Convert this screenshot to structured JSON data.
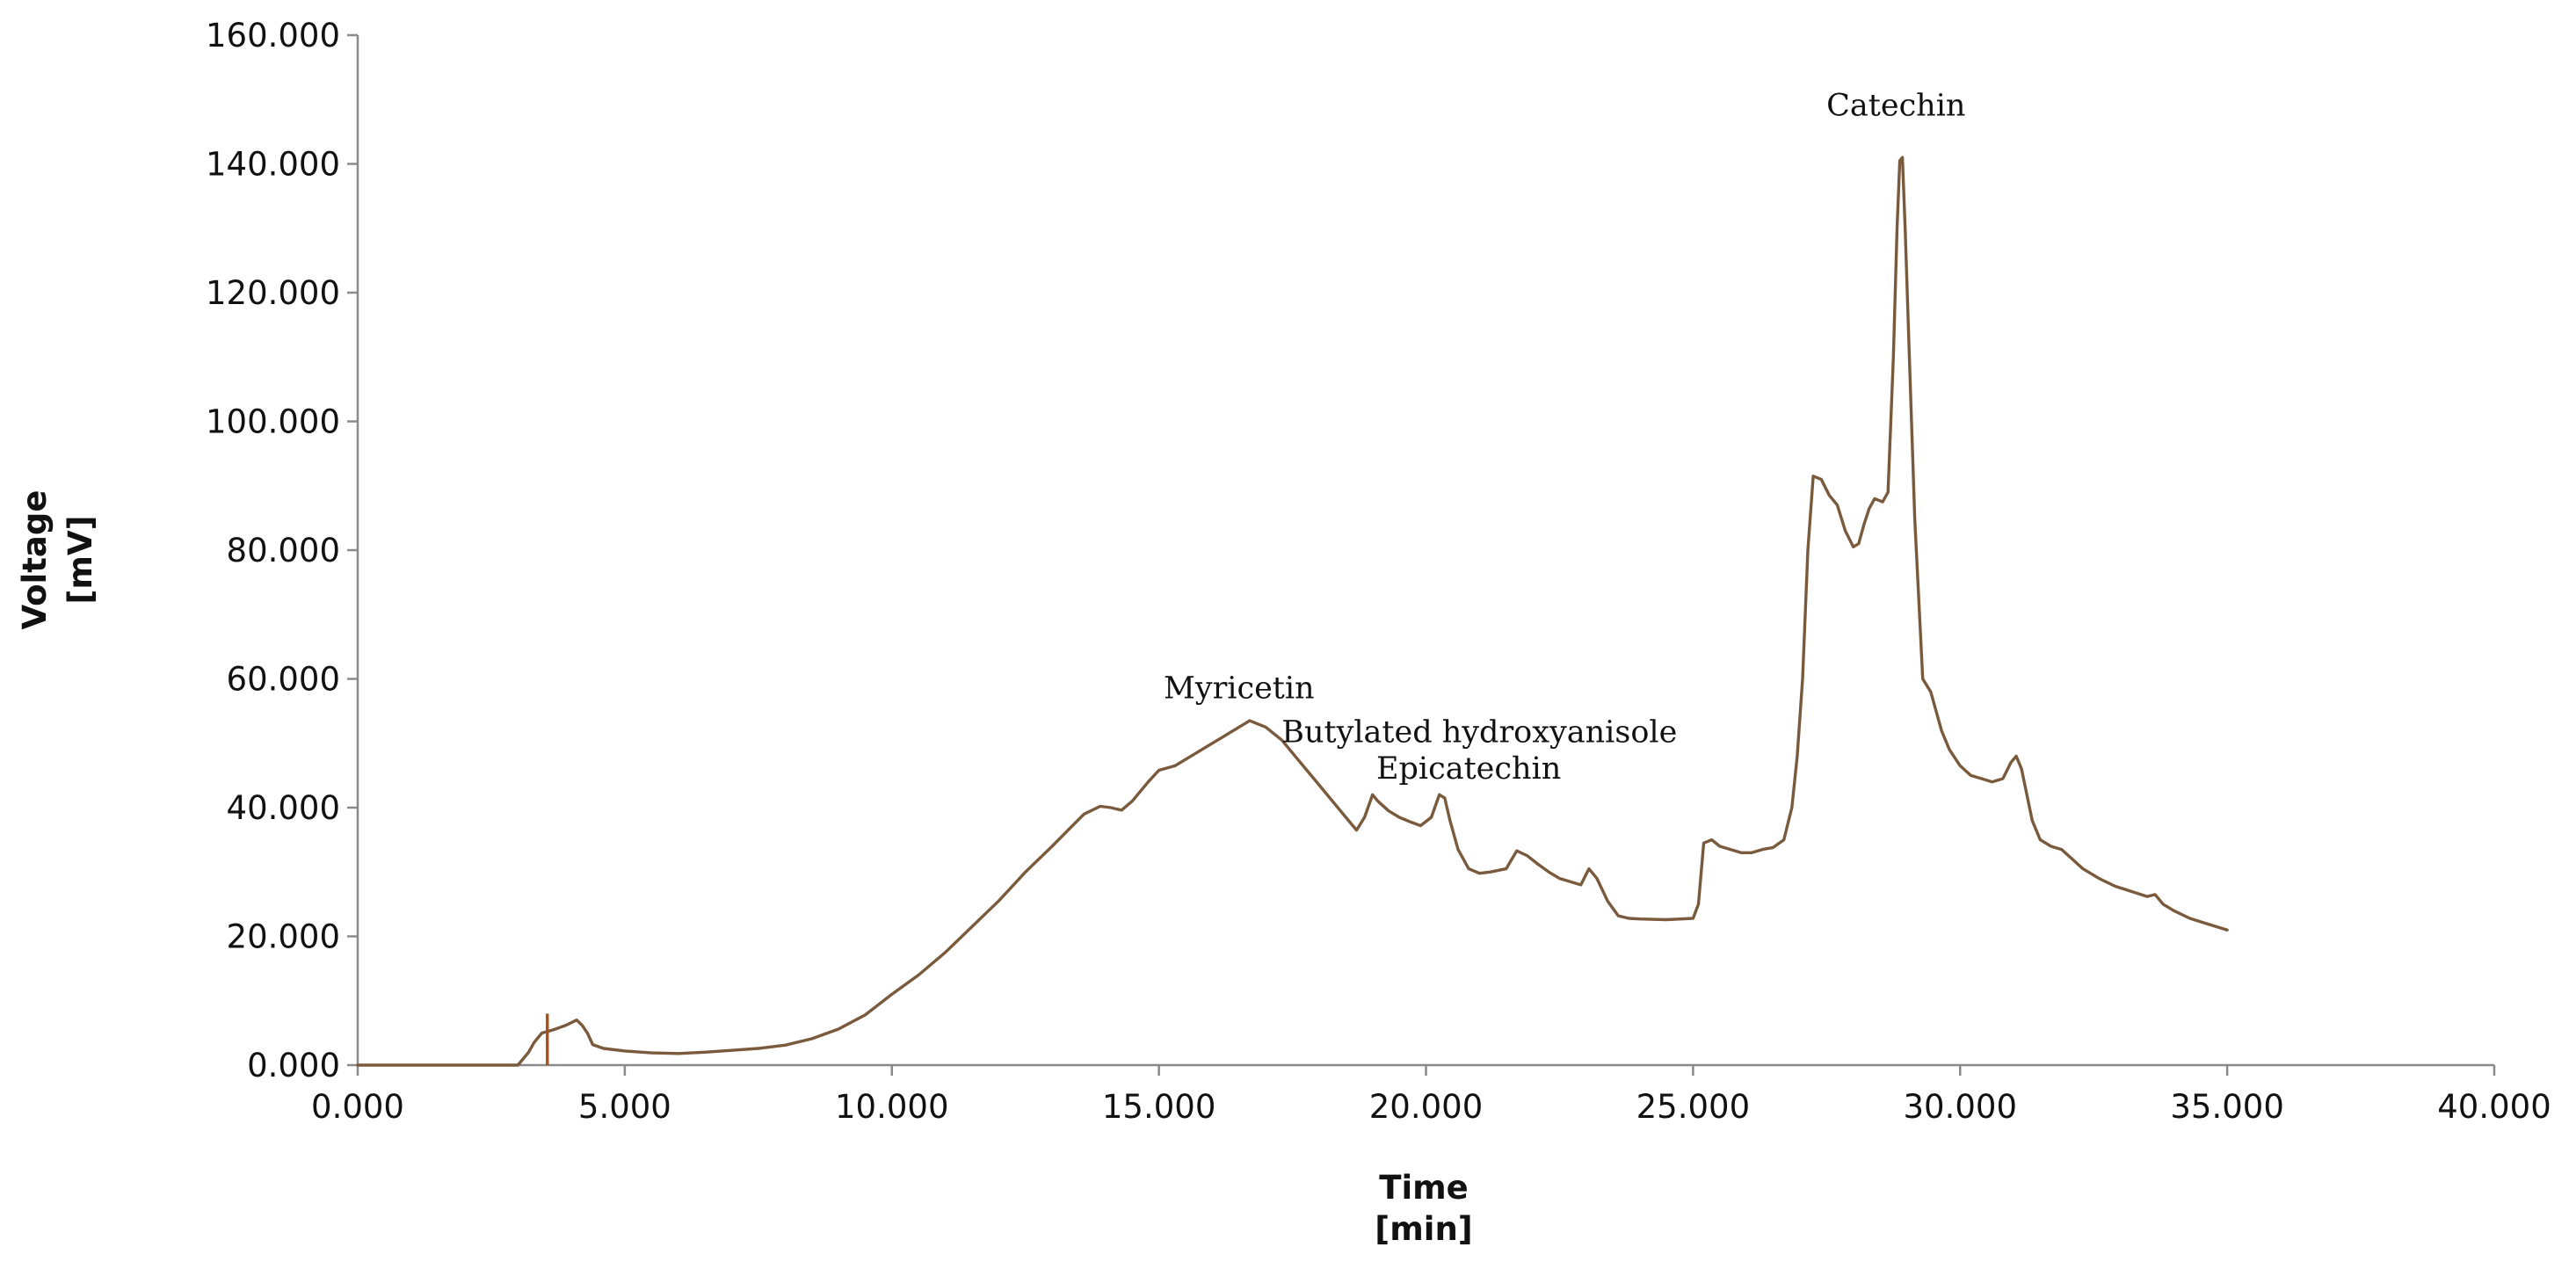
{
  "chart_data": {
    "type": "line",
    "title": "",
    "xlabel": "Time",
    "xlabel_unit": "[min]",
    "ylabel": "Voltage",
    "ylabel_unit": "[mV]",
    "xlim": [
      0,
      40
    ],
    "ylim": [
      0,
      160
    ],
    "x_ticks": [
      "0.000",
      "5.000",
      "10.000",
      "15.000",
      "20.000",
      "25.000",
      "30.000",
      "35.000",
      "40.000"
    ],
    "y_ticks": [
      "0.000",
      "20.000",
      "40.000",
      "60.000",
      "80.000",
      "100.000",
      "120.000",
      "140.000",
      "160.000"
    ],
    "grid": false,
    "legend": "none",
    "line_color": "#7a5a3c",
    "spike_color": "#a8501a",
    "series": [
      {
        "name": "Voltage",
        "x": [
          0,
          3.0,
          3.2,
          3.3,
          3.35,
          3.45,
          3.55,
          3.7,
          3.9,
          4.1,
          4.2,
          4.3,
          4.4,
          4.6,
          5.0,
          5.5,
          6.0,
          6.5,
          7.0,
          7.5,
          8.0,
          8.5,
          9.0,
          9.5,
          10.0,
          10.5,
          11.0,
          11.5,
          12.0,
          12.5,
          13.0,
          13.3,
          13.6,
          13.9,
          14.1,
          14.3,
          14.5,
          14.8,
          15.0,
          15.3,
          15.6,
          15.9,
          16.2,
          16.5,
          16.7,
          17.0,
          17.3,
          17.6,
          17.9,
          18.2,
          18.5,
          18.7,
          18.85,
          19.0,
          19.1,
          19.3,
          19.5,
          19.7,
          19.9,
          20.1,
          20.25,
          20.35,
          20.45,
          20.6,
          20.8,
          21.0,
          21.2,
          21.5,
          21.7,
          21.9,
          22.1,
          22.3,
          22.5,
          22.7,
          22.9,
          23.05,
          23.2,
          23.4,
          23.6,
          23.8,
          24.0,
          24.5,
          25.0,
          25.1,
          25.2,
          25.35,
          25.5,
          25.7,
          25.9,
          26.1,
          26.3,
          26.5,
          26.7,
          26.85,
          26.95,
          27.05,
          27.15,
          27.25,
          27.4,
          27.55,
          27.7,
          27.85,
          28.0,
          28.1,
          28.2,
          28.3,
          28.4,
          28.55,
          28.65,
          28.75,
          28.82,
          28.87,
          28.92,
          28.97,
          29.05,
          29.15,
          29.3,
          29.45,
          29.55,
          29.65,
          29.8,
          30.0,
          30.2,
          30.4,
          30.6,
          30.8,
          30.95,
          31.05,
          31.15,
          31.25,
          31.35,
          31.5,
          31.7,
          31.9,
          32.1,
          32.3,
          32.6,
          32.9,
          33.2,
          33.5,
          33.65,
          33.8,
          34.0,
          34.3,
          34.6,
          35.0
        ],
        "y": [
          0,
          0,
          2.0,
          3.5,
          4.0,
          5.0,
          5.2,
          5.6,
          6.2,
          7.0,
          6.2,
          5.0,
          3.2,
          2.6,
          2.2,
          1.9,
          1.8,
          2.0,
          2.3,
          2.6,
          3.1,
          4.1,
          5.6,
          7.8,
          11.0,
          14.0,
          17.5,
          21.5,
          25.5,
          30.0,
          34.0,
          36.5,
          39.0,
          40.2,
          40.0,
          39.6,
          41.0,
          44.0,
          45.8,
          46.5,
          48.0,
          49.5,
          51.0,
          52.5,
          53.5,
          52.5,
          50.5,
          47.5,
          44.5,
          41.5,
          38.5,
          36.5,
          38.5,
          42.0,
          41.0,
          39.5,
          38.5,
          37.8,
          37.2,
          38.5,
          42.0,
          41.5,
          38.0,
          33.5,
          30.5,
          29.8,
          30.0,
          30.5,
          33.3,
          32.5,
          31.2,
          30.0,
          29.0,
          28.5,
          28.0,
          30.5,
          29.0,
          25.5,
          23.2,
          22.8,
          22.7,
          22.6,
          22.8,
          25.0,
          34.5,
          35.0,
          34.0,
          33.5,
          33.0,
          33.0,
          33.5,
          33.8,
          35.0,
          40.0,
          48.0,
          60.0,
          80.0,
          91.5,
          91.0,
          88.5,
          87.0,
          83.0,
          80.5,
          81.0,
          84.0,
          86.5,
          88.0,
          87.5,
          89.0,
          110.0,
          130.0,
          140.5,
          141.0,
          130.0,
          110.0,
          85.0,
          60.0,
          58.0,
          55.0,
          52.0,
          49.0,
          46.5,
          45.0,
          44.5,
          44.0,
          44.5,
          47.0,
          48.0,
          46.0,
          42.0,
          38.0,
          35.0,
          34.0,
          33.5,
          32.0,
          30.5,
          29.0,
          27.8,
          27.0,
          26.2,
          26.5,
          25.0,
          24.0,
          22.8,
          22.0,
          21.0
        ]
      }
    ],
    "spike": {
      "x": 3.55,
      "y_from": 0,
      "y_to": 8.0
    },
    "annotations": [
      {
        "text": "Catechin",
        "x": 28.8,
        "y": 147.5
      },
      {
        "text": "Myricetin",
        "x": 16.5,
        "y": 57.0
      },
      {
        "text": "Butylated hydroxyanisole",
        "x": 21.0,
        "y": 50.2
      },
      {
        "text": "Epicatechin",
        "x": 20.8,
        "y": 44.5
      }
    ]
  }
}
